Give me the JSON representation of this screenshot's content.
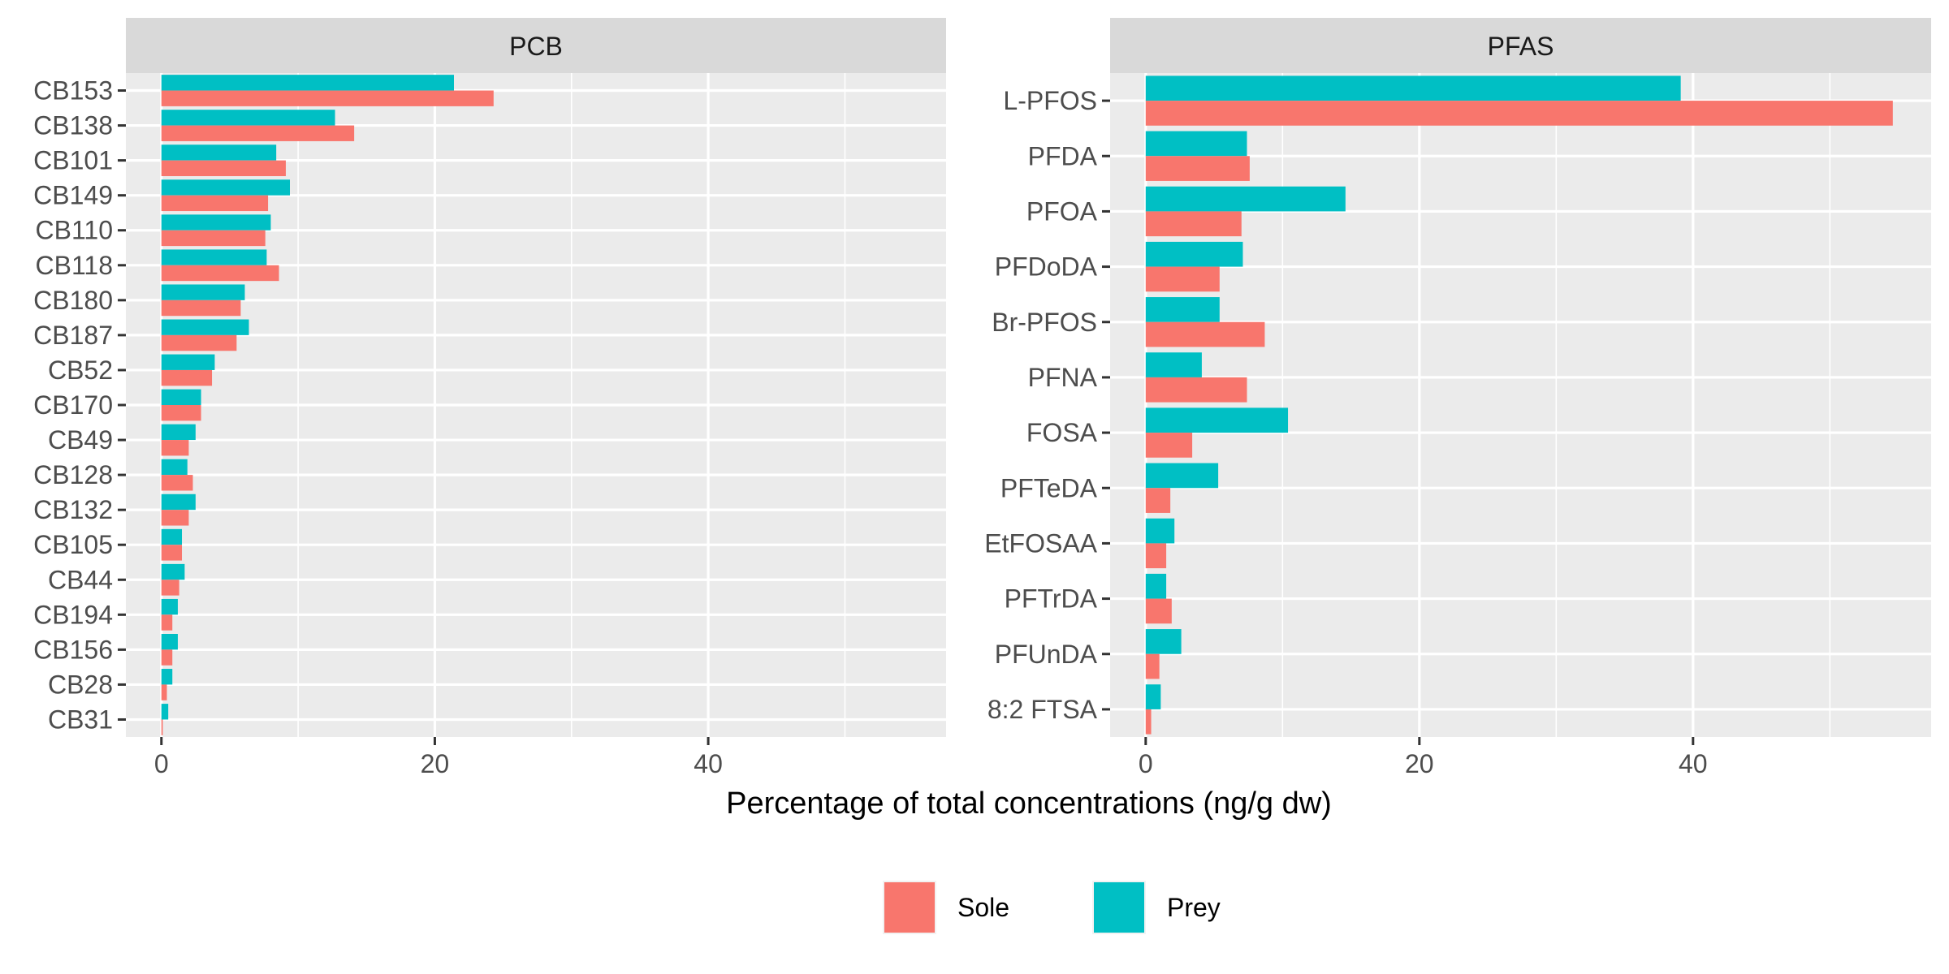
{
  "figure": {
    "xlabel": "Percentage of total concentrations (ng/g dw)",
    "legend": {
      "position": "bottom",
      "items": [
        {
          "label": "Sole",
          "color": "#F8766D"
        },
        {
          "label": "Prey",
          "color": "#00BFC4"
        }
      ]
    }
  },
  "chart_data": [
    {
      "type": "bar",
      "orientation": "horizontal",
      "title": "PCB",
      "xlim": [
        -2.6,
        57.4
      ],
      "xticks": [
        0,
        20,
        40
      ],
      "grid": true,
      "categories": [
        "CB153",
        "CB138",
        "CB101",
        "CB149",
        "CB110",
        "CB118",
        "CB180",
        "CB187",
        "CB52",
        "CB170",
        "CB49",
        "CB128",
        "CB132",
        "CB105",
        "CB44",
        "CB194",
        "CB156",
        "CB28",
        "CB31"
      ],
      "series": [
        {
          "name": "Sole",
          "color": "#F8766D",
          "values": [
            24.3,
            14.1,
            9.1,
            7.8,
            7.6,
            8.6,
            5.8,
            5.5,
            3.7,
            2.9,
            2.0,
            2.3,
            2.0,
            1.5,
            1.3,
            0.8,
            0.8,
            0.4,
            0.1
          ]
        },
        {
          "name": "Prey",
          "color": "#00BFC4",
          "values": [
            21.4,
            12.7,
            8.4,
            9.4,
            8.0,
            7.7,
            6.1,
            6.4,
            3.9,
            2.9,
            2.5,
            1.9,
            2.5,
            1.5,
            1.7,
            1.2,
            1.2,
            0.8,
            0.5
          ]
        }
      ]
    },
    {
      "type": "bar",
      "orientation": "horizontal",
      "title": "PFAS",
      "xlim": [
        -2.6,
        57.4
      ],
      "xticks": [
        0,
        20,
        40
      ],
      "grid": true,
      "categories": [
        "L-PFOS",
        "PFDA",
        "PFOA",
        "PFDoDA",
        "Br-PFOS",
        "PFNA",
        "FOSA",
        "PFTeDA",
        "EtFOSAA",
        "PFTrDA",
        "PFUnDA",
        "8:2 FTSA"
      ],
      "series": [
        {
          "name": "Sole",
          "color": "#F8766D",
          "values": [
            54.6,
            7.6,
            7.0,
            5.4,
            8.7,
            7.4,
            3.4,
            1.8,
            1.5,
            1.9,
            1.0,
            0.4
          ]
        },
        {
          "name": "Prey",
          "color": "#00BFC4",
          "values": [
            39.1,
            7.4,
            14.6,
            7.1,
            5.4,
            4.1,
            10.4,
            5.3,
            2.1,
            1.5,
            2.6,
            1.1
          ]
        }
      ]
    }
  ]
}
